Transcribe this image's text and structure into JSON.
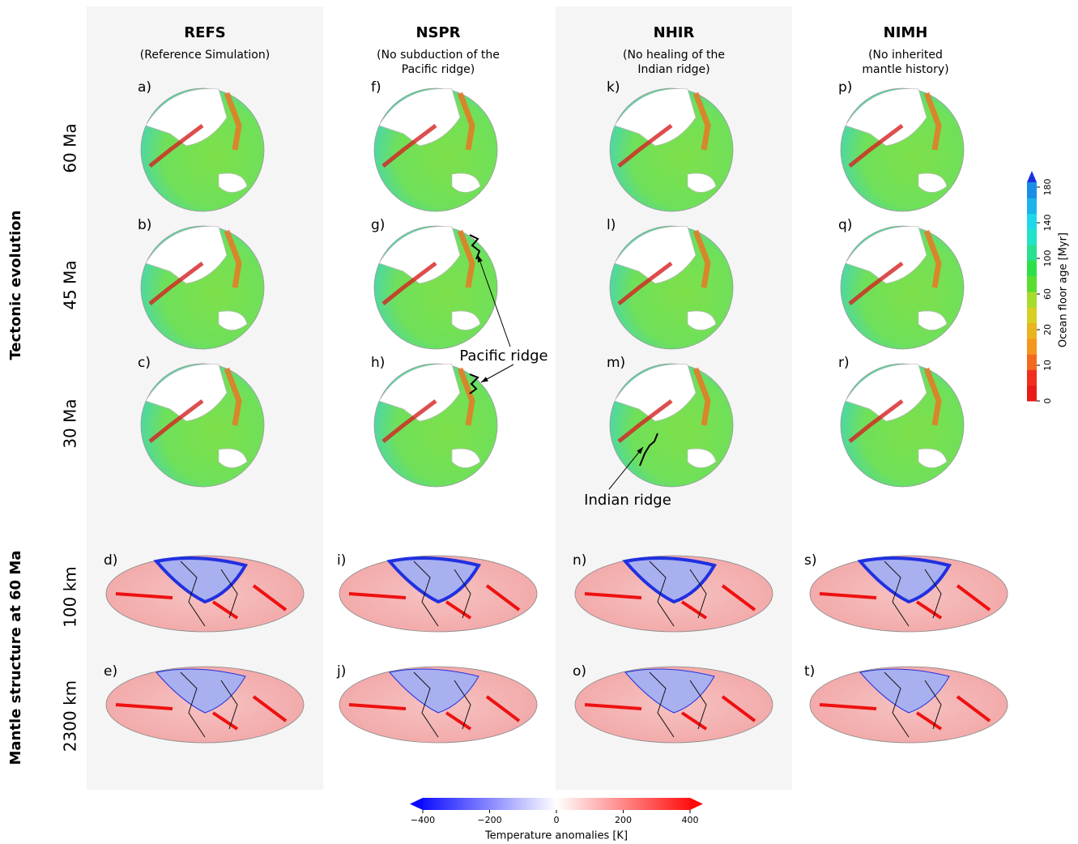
{
  "row_groups": [
    "Tectonic evolution",
    "Mantle structure at 60 Ma"
  ],
  "row_labels": [
    "60 Ma",
    "45 Ma",
    "30 Ma",
    "100 km",
    "2300 km"
  ],
  "columns": [
    {
      "title": "REFS",
      "subtitle": [
        "(Reference Simulation)"
      ],
      "color": "#000000",
      "panels": [
        "a)",
        "b)",
        "c)",
        "d)",
        "e)"
      ]
    },
    {
      "title": "NSPR",
      "subtitle": [
        "(No subduction of the",
        "Pacific ridge)"
      ],
      "color": "#ff00ff",
      "panels": [
        "f)",
        "g)",
        "h)",
        "i)",
        "j)"
      ]
    },
    {
      "title": "NHIR",
      "subtitle": [
        "(No healing of the",
        "Indian ridge)"
      ],
      "color": "#1a801a",
      "panels": [
        "k)",
        "l)",
        "m)",
        "n)",
        "o)"
      ]
    },
    {
      "title": "NIMH",
      "subtitle": [
        "(No inherited",
        "mantle history)"
      ],
      "color": "#ff0000",
      "panels": [
        "p)",
        "q)",
        "r)",
        "s)",
        "t)"
      ]
    }
  ],
  "annotations": [
    "Pacific ridge",
    "Indian ridge"
  ],
  "age_colorbar": {
    "label": "Ocean floor age [Myr]",
    "ticks": [
      0,
      10,
      20,
      60,
      100,
      140,
      180
    ]
  },
  "temperature_colorbar": {
    "label": "Temperature anomalies [K]",
    "lim": [
      -400,
      400
    ],
    "ticks": [
      {
        "value": -400,
        "label": "−400"
      },
      {
        "value": -200,
        "label": "−200"
      },
      0,
      200,
      400
    ]
  }
}
